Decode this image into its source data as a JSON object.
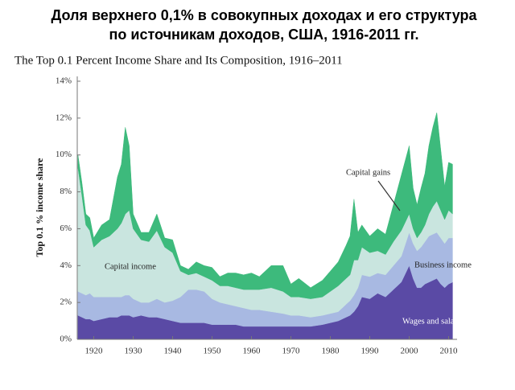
{
  "chart_data": {
    "type": "stacked_area",
    "title": [
      "Доля верхнего 0,1% в совокупных доходах и его структура",
      "по источникам доходов, США, 1916-2011 гг."
    ],
    "subtitle": "The Top 0.1 Percent Income Share and Its Composition, 1916–2011",
    "y_label": "Top 0.1 % income share",
    "x": [
      1916,
      1917,
      1918,
      1919,
      1920,
      1922,
      1924,
      1926,
      1927,
      1928,
      1929,
      1930,
      1932,
      1934,
      1936,
      1938,
      1940,
      1942,
      1944,
      1946,
      1948,
      1950,
      1952,
      1954,
      1956,
      1958,
      1960,
      1962,
      1965,
      1968,
      1970,
      1972,
      1975,
      1978,
      1980,
      1982,
      1984,
      1985,
      1986,
      1987,
      1988,
      1990,
      1992,
      1994,
      1996,
      1998,
      2000,
      2001,
      2002,
      2003,
      2004,
      2005,
      2006,
      2007,
      2008,
      2009,
      2010,
      2011
    ],
    "series": [
      {
        "name": "Wages and salaries",
        "color": "#5a4aa5",
        "values": [
          1.3,
          1.2,
          1.1,
          1.1,
          1.0,
          1.1,
          1.2,
          1.2,
          1.3,
          1.3,
          1.3,
          1.2,
          1.3,
          1.2,
          1.2,
          1.1,
          1.0,
          0.9,
          0.9,
          0.9,
          0.9,
          0.8,
          0.8,
          0.8,
          0.8,
          0.7,
          0.7,
          0.7,
          0.7,
          0.7,
          0.7,
          0.7,
          0.7,
          0.8,
          0.9,
          1.0,
          1.2,
          1.3,
          1.5,
          1.8,
          2.3,
          2.2,
          2.5,
          2.3,
          2.7,
          3.1,
          4.0,
          3.3,
          2.8,
          2.8,
          3.0,
          3.1,
          3.2,
          3.3,
          3.0,
          2.8,
          3.0,
          3.1
        ]
      },
      {
        "name": "Business income",
        "color": "#a8b9e2",
        "values": [
          1.3,
          1.3,
          1.3,
          1.4,
          1.3,
          1.2,
          1.1,
          1.1,
          1.0,
          1.1,
          1.1,
          1.0,
          0.7,
          0.8,
          1.0,
          0.9,
          1.1,
          1.4,
          1.8,
          1.8,
          1.7,
          1.4,
          1.2,
          1.1,
          1.0,
          1.0,
          0.9,
          0.9,
          0.8,
          0.7,
          0.6,
          0.6,
          0.5,
          0.5,
          0.5,
          0.5,
          0.7,
          0.8,
          0.9,
          1.0,
          1.2,
          1.2,
          1.1,
          1.2,
          1.3,
          1.4,
          1.8,
          1.9,
          2.0,
          2.2,
          2.3,
          2.5,
          2.5,
          2.5,
          2.5,
          2.4,
          2.5,
          2.4
        ]
      },
      {
        "name": "Capital income",
        "color": "#c9e5df",
        "values": [
          6.7,
          5.3,
          3.8,
          3.4,
          2.7,
          3.1,
          3.3,
          3.7,
          4.0,
          4.4,
          4.6,
          3.8,
          3.4,
          3.3,
          3.7,
          3.0,
          2.6,
          1.4,
          0.8,
          0.9,
          0.8,
          1.0,
          0.9,
          1.0,
          1.0,
          1.0,
          1.1,
          1.1,
          1.3,
          1.2,
          1.0,
          1.0,
          1.0,
          1.0,
          1.2,
          1.4,
          1.4,
          1.4,
          1.9,
          1.5,
          1.5,
          1.3,
          1.2,
          1.1,
          1.3,
          1.4,
          1.0,
          0.8,
          0.7,
          0.8,
          0.9,
          1.2,
          1.5,
          1.7,
          1.5,
          1.3,
          1.5,
          1.3
        ]
      },
      {
        "name": "Capital gains",
        "color": "#3dba7c",
        "values": [
          0.7,
          0.7,
          0.6,
          0.7,
          0.5,
          0.8,
          0.9,
          2.8,
          3.2,
          4.7,
          3.5,
          0.8,
          0.4,
          0.5,
          0.9,
          0.5,
          0.7,
          0.3,
          0.3,
          0.6,
          0.6,
          0.7,
          0.5,
          0.7,
          0.8,
          0.8,
          0.9,
          0.7,
          1.2,
          1.4,
          0.7,
          1.0,
          0.6,
          0.9,
          1.1,
          1.3,
          1.8,
          2.1,
          3.3,
          1.5,
          1.2,
          0.9,
          1.2,
          1.1,
          2.0,
          3.0,
          3.7,
          2.2,
          1.8,
          2.4,
          2.8,
          3.7,
          4.3,
          4.8,
          3.3,
          1.8,
          2.6,
          2.7
        ]
      }
    ],
    "xlim": [
      1915,
      2012
    ],
    "xticks": [
      1920,
      1930,
      1940,
      1950,
      1960,
      1970,
      1980,
      1990,
      2000,
      2010
    ],
    "ylim": [
      0,
      14
    ],
    "yticks": [
      {
        "value": 0,
        "label": "0%"
      },
      {
        "value": 2,
        "label": "2%"
      },
      {
        "value": 4,
        "label": "4%"
      },
      {
        "value": 6,
        "label": "6%"
      },
      {
        "value": 8,
        "label": "8%"
      },
      {
        "value": 10,
        "label": "10%"
      },
      {
        "value": 12,
        "label": "12%"
      },
      {
        "value": 14,
        "label": "14%"
      }
    ],
    "grid": false
  }
}
